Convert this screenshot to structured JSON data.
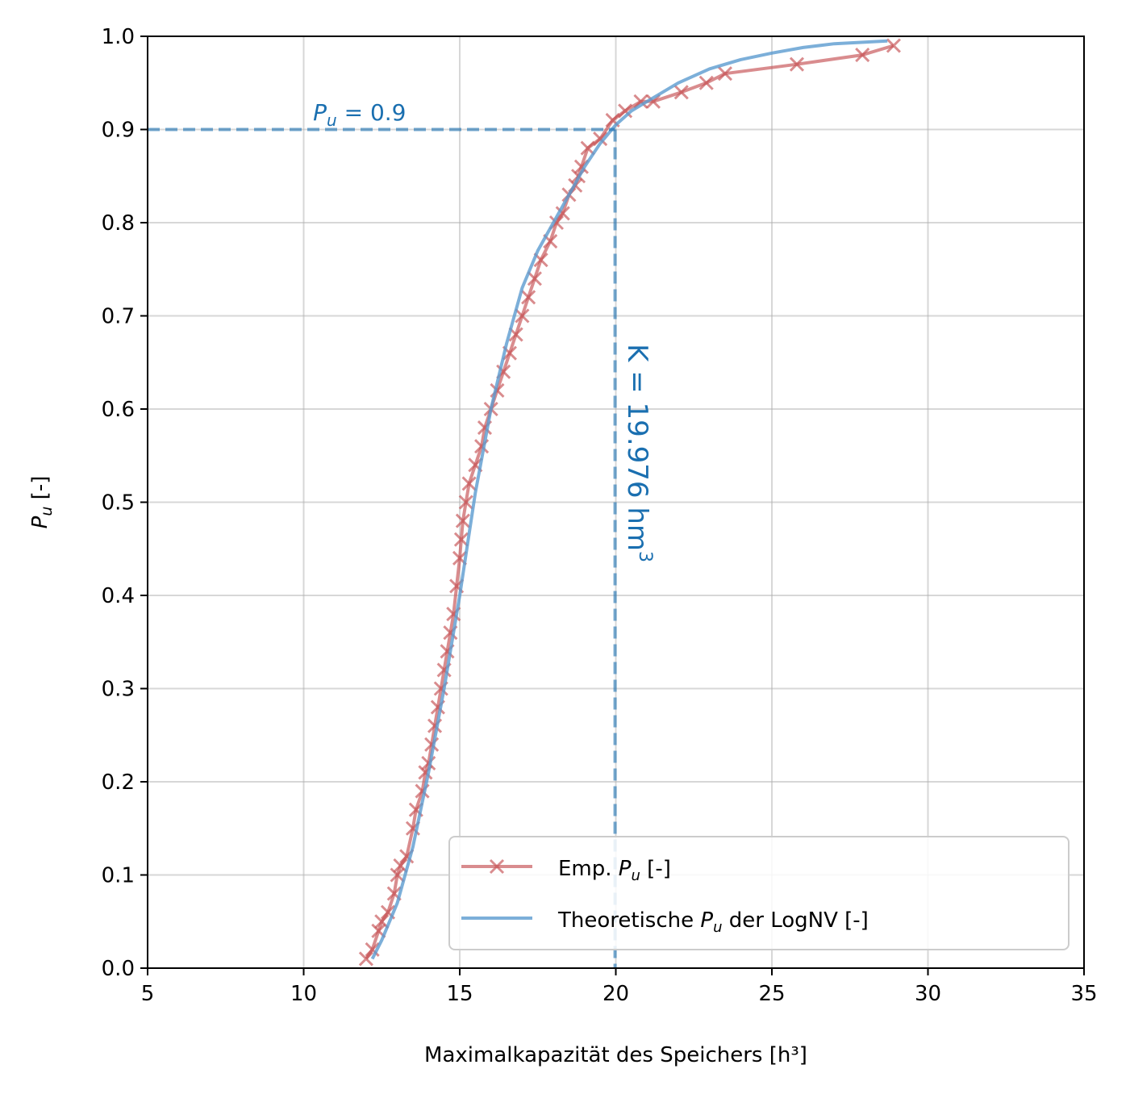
{
  "chart_data": {
    "type": "line",
    "xlabel": "Maximalkapazität des Speichers [h³]",
    "ylabel": "P_u [-]",
    "xlim": [
      5,
      35
    ],
    "ylim": [
      0.0,
      1.0
    ],
    "x_ticks": [
      "5",
      "10",
      "15",
      "20",
      "25",
      "30",
      "35"
    ],
    "y_ticks": [
      "0.0",
      "0.1",
      "0.2",
      "0.3",
      "0.4",
      "0.5",
      "0.6",
      "0.7",
      "0.8",
      "0.9",
      "1.0"
    ],
    "grid": true,
    "legend_position": "lower-right",
    "series": [
      {
        "name": "Emp. P_u [-]",
        "legend_text": "Emp. ",
        "legend_suffix": " [-]",
        "color": "#c44e52",
        "marker": "x",
        "x": [
          12.0,
          12.2,
          12.4,
          12.5,
          12.7,
          12.9,
          13.0,
          13.1,
          13.3,
          13.5,
          13.6,
          13.8,
          13.9,
          14.0,
          14.1,
          14.2,
          14.3,
          14.4,
          14.5,
          14.6,
          14.7,
          14.8,
          14.9,
          15.0,
          15.05,
          15.1,
          15.2,
          15.3,
          15.5,
          15.7,
          15.8,
          16.0,
          16.2,
          16.4,
          16.6,
          16.8,
          17.0,
          17.2,
          17.4,
          17.6,
          17.9,
          18.1,
          18.3,
          18.5,
          18.7,
          18.8,
          18.9,
          19.1,
          19.5,
          19.9,
          20.3,
          20.8,
          21.2,
          22.1,
          22.9,
          23.5,
          25.8,
          27.9,
          28.9
        ],
        "y": [
          0.01,
          0.02,
          0.04,
          0.05,
          0.06,
          0.08,
          0.1,
          0.11,
          0.12,
          0.15,
          0.17,
          0.19,
          0.21,
          0.22,
          0.24,
          0.26,
          0.28,
          0.3,
          0.32,
          0.34,
          0.36,
          0.38,
          0.41,
          0.44,
          0.46,
          0.48,
          0.5,
          0.52,
          0.54,
          0.56,
          0.58,
          0.6,
          0.62,
          0.64,
          0.66,
          0.68,
          0.7,
          0.72,
          0.74,
          0.76,
          0.78,
          0.8,
          0.81,
          0.83,
          0.84,
          0.85,
          0.86,
          0.88,
          0.89,
          0.91,
          0.92,
          0.93,
          0.93,
          0.94,
          0.95,
          0.96,
          0.97,
          0.98,
          0.99
        ]
      },
      {
        "name": "Theoretische P_u der LogNV [-]",
        "legend_text": "Theoretische ",
        "legend_suffix": " der LogNV [-]",
        "color": "#5b9bd0",
        "marker": "none",
        "x": [
          12.2,
          12.5,
          13.0,
          13.5,
          14.0,
          14.5,
          15.0,
          15.5,
          16.0,
          16.5,
          17.0,
          17.5,
          18.0,
          18.5,
          19.0,
          19.5,
          20.0,
          20.5,
          21.0,
          22.0,
          23.0,
          24.0,
          25.0,
          26.0,
          27.0,
          28.7
        ],
        "y": [
          0.01,
          0.03,
          0.07,
          0.13,
          0.21,
          0.3,
          0.4,
          0.51,
          0.6,
          0.67,
          0.73,
          0.77,
          0.8,
          0.83,
          0.86,
          0.885,
          0.905,
          0.92,
          0.93,
          0.95,
          0.965,
          0.975,
          0.982,
          0.988,
          0.992,
          0.995
        ]
      }
    ],
    "annotations": {
      "threshold_line": {
        "y": 0.9,
        "x": 19.976,
        "color": "#1a6fb0"
      },
      "pu_label": {
        "text": " = 0.9",
        "x": 10.3,
        "y": 0.91
      },
      "k_label": {
        "text": "K = 19.976 hm",
        "superscript": "3",
        "x": 20.4,
        "y": 0.67
      }
    }
  }
}
